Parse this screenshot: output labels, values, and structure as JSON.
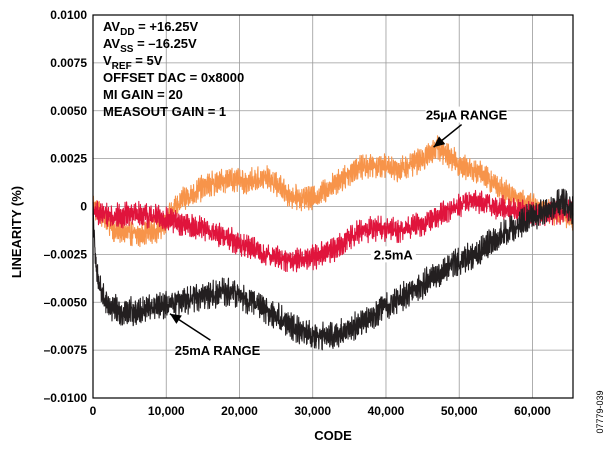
{
  "chart_data": {
    "type": "line",
    "xlabel": "CODE",
    "ylabel": "LINEARITY (%)",
    "xlim": [
      0,
      65535
    ],
    "ylim": [
      -0.01,
      0.01
    ],
    "x_ticks": [
      0,
      10000,
      20000,
      30000,
      40000,
      50000,
      60000
    ],
    "x_tick_labels": [
      "0",
      "10,000",
      "20,000",
      "30,000",
      "40,000",
      "50,000",
      "60,000"
    ],
    "y_ticks": [
      0.01,
      0.0075,
      0.005,
      0.0025,
      0,
      -0.0025,
      -0.005,
      -0.0075,
      -0.01
    ],
    "y_tick_labels": [
      "0.0100",
      "0.0075",
      "0.0050",
      "0.0025",
      "0",
      "–0.0025",
      "–0.0050",
      "–0.0075",
      "–0.0100"
    ],
    "grid": true,
    "conditions": [
      {
        "main": "AV",
        "sub": "DD",
        "rest": " = +16.25V"
      },
      {
        "main": "AV",
        "sub": "SS",
        "rest": " = –16.25V"
      },
      {
        "main": "V",
        "sub": "REF",
        "rest": " = 5V"
      },
      {
        "main": "OFFSET DAC = 0x8000",
        "sub": "",
        "rest": ""
      },
      {
        "main": "MI GAIN = 20",
        "sub": "",
        "rest": ""
      },
      {
        "main": "MEASOUT GAIN = 1",
        "sub": "",
        "rest": ""
      }
    ],
    "series": [
      {
        "name": "25µA RANGE",
        "color": "#f7944a",
        "noise_amplitude": 0.0007,
        "x": [
          0,
          3000,
          6000,
          9000,
          12000,
          15000,
          18000,
          21000,
          24000,
          27000,
          30000,
          33000,
          36000,
          39000,
          42000,
          45000,
          47000,
          50000,
          53000,
          56000,
          59000,
          62000,
          65535
        ],
        "y": [
          0.0001,
          -0.0013,
          -0.0015,
          -0.0012,
          0.0003,
          0.001,
          0.0014,
          0.0013,
          0.0015,
          0.0005,
          0.0004,
          0.0012,
          0.002,
          0.0022,
          0.0019,
          0.0025,
          0.0031,
          0.0022,
          0.0017,
          0.0008,
          0.0002,
          -0.0002,
          -0.0006
        ]
      },
      {
        "name": "2.5mA",
        "color": "#e0143c",
        "noise_amplitude": 0.0007,
        "x": [
          0,
          3000,
          6000,
          9000,
          12000,
          15000,
          18000,
          21000,
          24000,
          27000,
          30000,
          33000,
          36000,
          39000,
          42000,
          45000,
          48000,
          51000,
          54000,
          57000,
          60000,
          63000,
          65535
        ],
        "y": [
          -0.0003,
          -0.0005,
          -0.0004,
          -0.0006,
          -0.0009,
          -0.0012,
          -0.0016,
          -0.0021,
          -0.0026,
          -0.0028,
          -0.0027,
          -0.0022,
          -0.0014,
          -0.0011,
          -0.0013,
          -0.0009,
          -0.0003,
          0.0003,
          0.0001,
          -0.0002,
          -0.0004,
          -0.0003,
          -0.0002
        ]
      },
      {
        "name": "25mA RANGE",
        "color": "#231f20",
        "noise_amplitude": 0.0008,
        "x": [
          0,
          400,
          1200,
          2000,
          4000,
          6000,
          8000,
          10000,
          12000,
          14000,
          16000,
          18000,
          20000,
          22000,
          24000,
          26000,
          28000,
          30000,
          32000,
          34000,
          36000,
          38000,
          40000,
          42000,
          44000,
          46000,
          48000,
          50000,
          52000,
          54000,
          56000,
          58000,
          60000,
          62000,
          64000,
          65535
        ],
        "y": [
          0.0,
          -0.0033,
          -0.0045,
          -0.0052,
          -0.0055,
          -0.0055,
          -0.0053,
          -0.0052,
          -0.005,
          -0.0047,
          -0.0046,
          -0.0045,
          -0.0046,
          -0.005,
          -0.0055,
          -0.006,
          -0.0064,
          -0.0068,
          -0.0068,
          -0.0066,
          -0.0062,
          -0.0057,
          -0.0052,
          -0.0048,
          -0.0043,
          -0.0038,
          -0.0033,
          -0.0028,
          -0.0026,
          -0.002,
          -0.0015,
          -0.001,
          -0.0005,
          -0.0003,
          0.0003,
          -0.0002
        ]
      }
    ],
    "annotations": [
      {
        "text": "25µA RANGE",
        "series": 0,
        "point_x": 46500,
        "point_y": 0.0031,
        "label_x": 51000,
        "label_y": 0.0048,
        "anchor": "middle"
      },
      {
        "text": "2.5mA",
        "series": 1,
        "point_x": 0,
        "point_y": 0,
        "label_x": 41000,
        "label_y": -0.0025,
        "anchor": "middle",
        "arrow": false
      },
      {
        "text": "25mA RANGE",
        "series": 2,
        "point_x": 10500,
        "point_y": -0.0056,
        "label_x": 17000,
        "label_y": -0.0075,
        "anchor": "middle"
      }
    ],
    "side_code": "07779-039"
  }
}
